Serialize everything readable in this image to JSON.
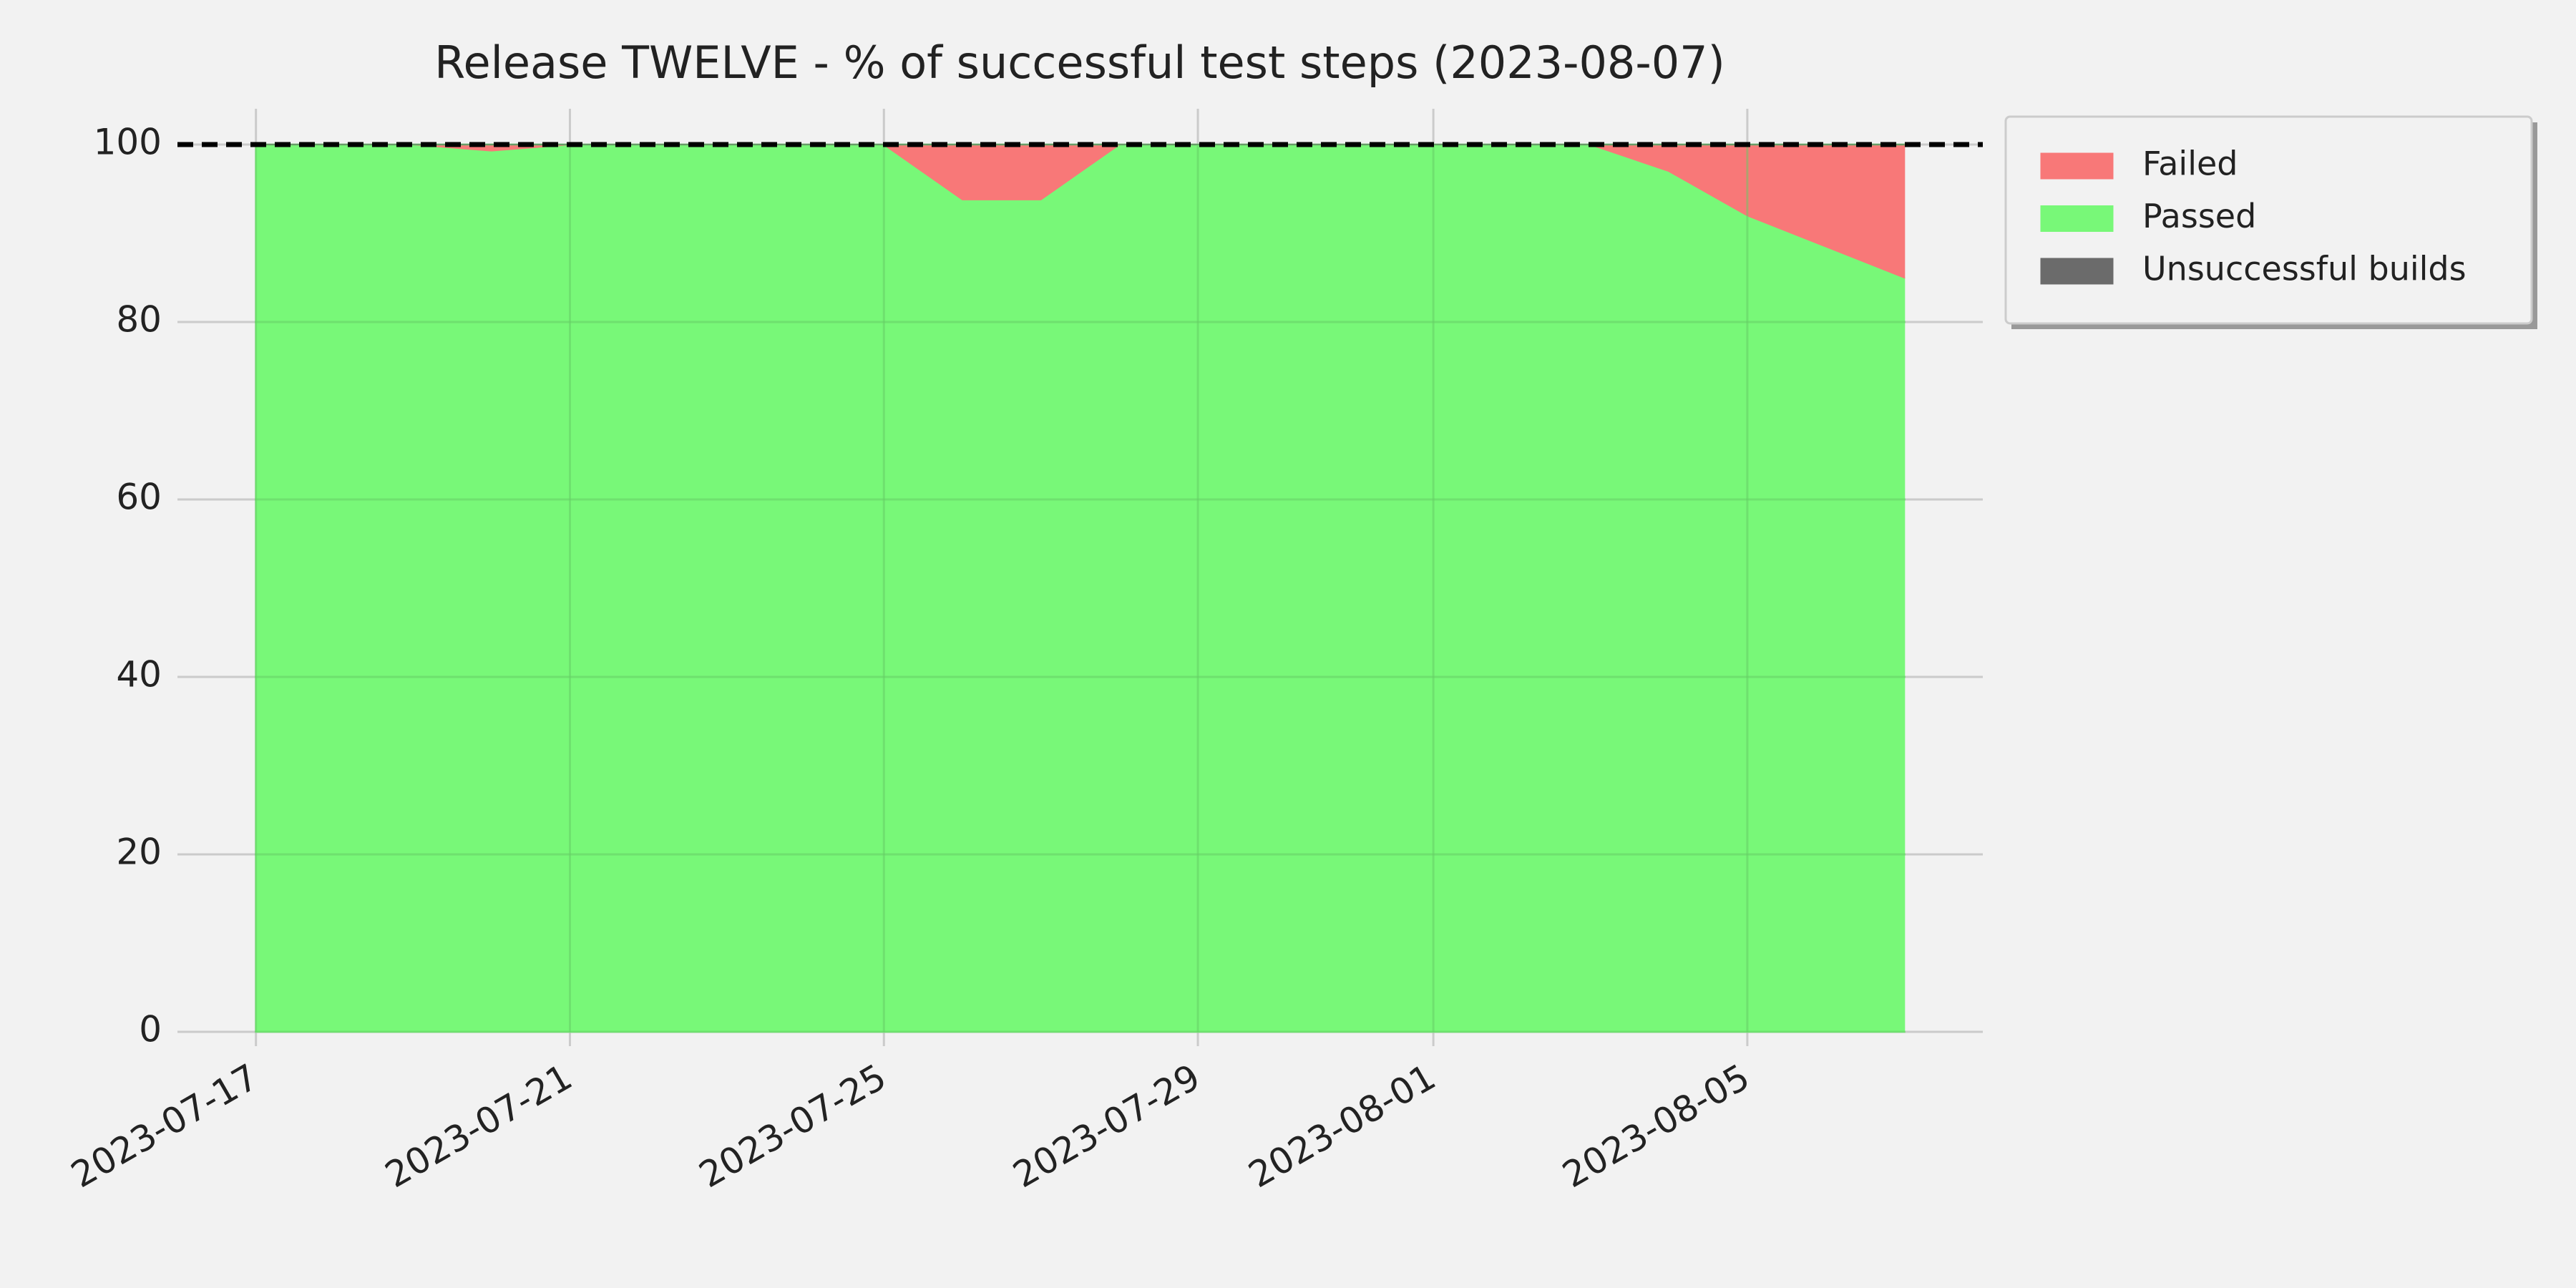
{
  "chart_data": {
    "type": "stacked_area",
    "title": "Release TWELVE - % of successful test steps (2023-08-07)",
    "x": [
      "2023-07-17",
      "2023-07-18",
      "2023-07-19",
      "2023-07-20",
      "2023-07-21",
      "2023-07-22",
      "2023-07-23",
      "2023-07-24",
      "2023-07-25",
      "2023-07-26",
      "2023-07-27",
      "2023-07-28",
      "2023-07-29",
      "2023-07-30",
      "2023-07-31",
      "2023-08-01",
      "2023-08-02",
      "2023-08-03",
      "2023-08-04",
      "2023-08-05",
      "2023-08-06",
      "2023-08-07"
    ],
    "series": [
      {
        "name": "Passed",
        "color": "#78f878",
        "values": [
          100,
          100,
          100,
          99.3,
          100,
          100,
          100,
          100,
          100,
          93.8,
          93.8,
          100,
          100,
          100,
          100,
          100,
          100,
          100,
          97,
          92,
          88.5,
          85
        ]
      },
      {
        "name": "Failed",
        "color": "#f87878",
        "values": [
          0,
          0,
          0,
          0.7,
          0,
          0,
          0,
          0,
          0,
          6.2,
          6.2,
          0,
          0,
          0,
          0,
          0,
          0,
          0,
          3,
          8,
          11.5,
          15
        ]
      },
      {
        "name": "Unsuccessful builds",
        "color": "#6b6b6b",
        "values": [
          0,
          0,
          0,
          0,
          0,
          0,
          0,
          0,
          0,
          0,
          0,
          0,
          0,
          0,
          0,
          0,
          0,
          0,
          0,
          0,
          0,
          0
        ]
      }
    ],
    "legend_order": [
      "Failed",
      "Passed",
      "Unsuccessful builds"
    ],
    "reference_line": 100,
    "xlim": [
      "2023-07-16",
      "2023-08-08"
    ],
    "xticks": [
      "2023-07-17",
      "2023-07-21",
      "2023-07-25",
      "2023-07-29",
      "2023-08-01",
      "2023-08-05"
    ],
    "ylim": [
      0,
      100
    ],
    "yticks": [
      0,
      20,
      40,
      60,
      80,
      100
    ],
    "grid": true,
    "legend": "outside upper right"
  }
}
